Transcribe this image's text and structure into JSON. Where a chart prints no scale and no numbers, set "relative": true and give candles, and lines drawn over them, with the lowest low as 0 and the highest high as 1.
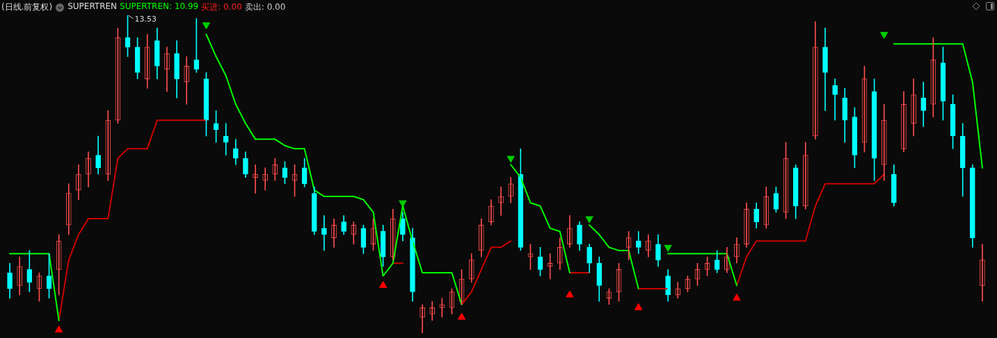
{
  "chart_data": {
    "type": "candlestick",
    "title": "(日线.前复权)",
    "relative": true,
    "tick_labels": false,
    "annotations": [
      "SUPERTREN",
      "SUPERTREN: 10.99",
      "买进: 0.00",
      "卖出: 0.00",
      "13.53"
    ],
    "categories": [
      null,
      null,
      null,
      null,
      null,
      null,
      null,
      null,
      null,
      null,
      null,
      null,
      null,
      null,
      null,
      null,
      null,
      null,
      null,
      null,
      null,
      null,
      null,
      null,
      null,
      null,
      null,
      null,
      null,
      null,
      null,
      null,
      null,
      null,
      null,
      null,
      null,
      null,
      null,
      null,
      null,
      null,
      null,
      null,
      null,
      null,
      null,
      null,
      null,
      null,
      null,
      null,
      null,
      null,
      null,
      null,
      null,
      null,
      null,
      null,
      null,
      null,
      null,
      null,
      null,
      null,
      null,
      null,
      null,
      null,
      null,
      null,
      null,
      null,
      null,
      null,
      null,
      null,
      null,
      null,
      null,
      null,
      null,
      null,
      null,
      null,
      null,
      null,
      null,
      null,
      null,
      null,
      null,
      null,
      null,
      null,
      null,
      null,
      null,
      null
    ],
    "series": [
      {
        "ohlc": [
          [
            0.19,
            0.22,
            0.11,
            0.14
          ],
          [
            0.15,
            0.24,
            0.12,
            0.21
          ],
          [
            0.2,
            0.26,
            0.13,
            0.16
          ],
          [
            0.14,
            0.19,
            0.1,
            0.18
          ],
          [
            0.18,
            0.25,
            0.11,
            0.14
          ],
          [
            0.2,
            0.31,
            0.12,
            0.29
          ],
          [
            0.34,
            0.47,
            0.31,
            0.44
          ],
          [
            0.45,
            0.53,
            0.42,
            0.5
          ],
          [
            0.5,
            0.57,
            0.46,
            0.55
          ],
          [
            0.56,
            0.62,
            0.5,
            0.52
          ],
          [
            0.5,
            0.7,
            0.48,
            0.67
          ],
          [
            0.67,
            0.96,
            0.66,
            0.93
          ],
          [
            0.93,
            1,
            0.87,
            0.9
          ],
          [
            0.9,
            0.93,
            0.8,
            0.82
          ],
          [
            0.8,
            0.94,
            0.77,
            0.9
          ],
          [
            0.92,
            0.96,
            0.8,
            0.84
          ],
          [
            0.83,
            0.9,
            0.76,
            0.88
          ],
          [
            0.88,
            0.92,
            0.74,
            0.8
          ],
          [
            0.79,
            0.87,
            0.72,
            0.84
          ],
          [
            0.86,
            0.99,
            0.82,
            0.83
          ],
          [
            0.8,
            0.82,
            0.62,
            0.67
          ],
          [
            0.66,
            0.7,
            0.6,
            0.64
          ],
          [
            0.62,
            0.66,
            0.56,
            0.6
          ],
          [
            0.58,
            0.61,
            0.53,
            0.55
          ],
          [
            0.55,
            0.57,
            0.49,
            0.5
          ],
          [
            0.49,
            0.53,
            0.44,
            0.5
          ],
          [
            0.48,
            0.52,
            0.45,
            0.5
          ],
          [
            0.5,
            0.55,
            0.48,
            0.53
          ],
          [
            0.52,
            0.54,
            0.47,
            0.49
          ],
          [
            0.48,
            0.53,
            0.43,
            0.5
          ],
          [
            0.52,
            0.55,
            0.46,
            0.47
          ],
          [
            0.44,
            0.46,
            0.31,
            0.32
          ],
          [
            0.33,
            0.37,
            0.26,
            0.31
          ],
          [
            0.3,
            0.36,
            0.27,
            0.34
          ],
          [
            0.35,
            0.37,
            0.31,
            0.32
          ],
          [
            0.31,
            0.35,
            0.28,
            0.34
          ],
          [
            0.33,
            0.34,
            0.25,
            0.27
          ],
          [
            0.28,
            0.36,
            0.26,
            0.33
          ],
          [
            0.32,
            0.34,
            0.21,
            0.24
          ],
          [
            0.24,
            0.39,
            0.23,
            0.36
          ],
          [
            0.36,
            0.38,
            0.29,
            0.31
          ],
          [
            0.3,
            0.33,
            0.1,
            0.13
          ],
          [
            0.05,
            0.09,
            0,
            0.08
          ],
          [
            0.06,
            0.1,
            0.04,
            0.08
          ],
          [
            0.08,
            0.11,
            0.05,
            0.09
          ],
          [
            0.08,
            0.14,
            0.06,
            0.13
          ],
          [
            0.1,
            0.2,
            0.09,
            0.17
          ],
          [
            0.17,
            0.25,
            0.16,
            0.23
          ],
          [
            0.26,
            0.36,
            0.24,
            0.34
          ],
          [
            0.35,
            0.42,
            0.34,
            0.4
          ],
          [
            0.41,
            0.46,
            0.37,
            0.43
          ],
          [
            0.43,
            0.49,
            0.41,
            0.47
          ],
          [
            0.5,
            0.58,
            0.26,
            0.27
          ],
          [
            0.24,
            0.28,
            0.2,
            0.25
          ],
          [
            0.24,
            0.27,
            0.18,
            0.2
          ],
          [
            0.21,
            0.25,
            0.17,
            0.22
          ],
          [
            0.22,
            0.3,
            0.2,
            0.27
          ],
          [
            0.28,
            0.37,
            0.27,
            0.33
          ],
          [
            0.34,
            0.35,
            0.26,
            0.28
          ],
          [
            0.27,
            0.28,
            0.19,
            0.22
          ],
          [
            0.22,
            0.24,
            0.1,
            0.15
          ],
          [
            0.11,
            0.14,
            0.09,
            0.13
          ],
          [
            0.13,
            0.22,
            0.1,
            0.2
          ],
          [
            0.27,
            0.32,
            0.23,
            0.3
          ],
          [
            0.29,
            0.32,
            0.25,
            0.27
          ],
          [
            0.26,
            0.31,
            0.24,
            0.29
          ],
          [
            0.28,
            0.31,
            0.21,
            0.23
          ],
          [
            0.18,
            0.2,
            0.1,
            0.12
          ],
          [
            0.12,
            0.16,
            0.11,
            0.14
          ],
          [
            0.14,
            0.18,
            0.13,
            0.17
          ],
          [
            0.17,
            0.22,
            0.15,
            0.2
          ],
          [
            0.2,
            0.24,
            0.18,
            0.22
          ],
          [
            0.23,
            0.26,
            0.19,
            0.2
          ],
          [
            0.2,
            0.27,
            0.19,
            0.24
          ],
          [
            0.24,
            0.3,
            0.22,
            0.28
          ],
          [
            0.28,
            0.41,
            0.27,
            0.39
          ],
          [
            0.39,
            0.41,
            0.33,
            0.35
          ],
          [
            0.34,
            0.46,
            0.33,
            0.43
          ],
          [
            0.44,
            0.46,
            0.38,
            0.39
          ],
          [
            0.38,
            0.6,
            0.36,
            0.55
          ],
          [
            0.52,
            0.53,
            0.36,
            0.4
          ],
          [
            0.4,
            0.6,
            0.39,
            0.56
          ],
          [
            0.62,
            0.98,
            0.61,
            0.9
          ],
          [
            0.9,
            0.96,
            0.7,
            0.82
          ],
          [
            0.78,
            0.8,
            0.67,
            0.75
          ],
          [
            0.74,
            0.77,
            0.6,
            0.67
          ],
          [
            0.68,
            0.71,
            0.52,
            0.56
          ],
          [
            0.6,
            0.84,
            0.57,
            0.8
          ],
          [
            0.76,
            0.8,
            0.48,
            0.55
          ],
          [
            0.53,
            0.72,
            0.48,
            0.67
          ],
          [
            0.5,
            0.53,
            0.4,
            0.41
          ],
          [
            0.58,
            0.76,
            0.57,
            0.72
          ],
          [
            0.66,
            0.8,
            0.62,
            0.75
          ],
          [
            0.74,
            0.79,
            0.65,
            0.7
          ],
          [
            0.72,
            0.93,
            0.68,
            0.86
          ],
          [
            0.85,
            0.9,
            0.67,
            0.73
          ],
          [
            0.72,
            0.75,
            0.58,
            0.62
          ],
          [
            0.62,
            0.66,
            0.43,
            0.52
          ],
          [
            0.52,
            0.53,
            0.27,
            0.3
          ],
          [
            0.15,
            0.28,
            0.1,
            0.23
          ]
        ],
        "colors": [
          "#00ffff",
          "#ff4d4d",
          "#00ffff",
          "#ff4d4d",
          "#00ffff",
          "#ff4d4d",
          "#ff4d4d",
          "#ff4d4d",
          "#ff4d4d",
          "#00ffff",
          "#ff4d4d",
          "#ff4d4d",
          "#00ffff",
          "#00ffff",
          "#ff4d4d",
          "#00ffff",
          "#ff4d4d",
          "#00ffff",
          "#ff4d4d",
          "#00ffff",
          "#00ffff",
          "#00ffff",
          "#00ffff",
          "#00ffff",
          "#00ffff",
          "#ff4d4d",
          "#ff4d4d",
          "#ff4d4d",
          "#00ffff",
          "#ff4d4d",
          "#00ffff",
          "#00ffff",
          "#00ffff",
          "#ff4d4d",
          "#00ffff",
          "#ff4d4d",
          "#00ffff",
          "#ff4d4d",
          "#00ffff",
          "#ff4d4d",
          "#00ffff",
          "#00ffff",
          "#ff4d4d",
          "#ff4d4d",
          "#ff4d4d",
          "#ff4d4d",
          "#ff4d4d",
          "#ff4d4d",
          "#ff4d4d",
          "#ff4d4d",
          "#ff4d4d",
          "#ff4d4d",
          "#00ffff",
          "#ff4d4d",
          "#00ffff",
          "#ff4d4d",
          "#ff4d4d",
          "#ff4d4d",
          "#00ffff",
          "#00ffff",
          "#00ffff",
          "#ff4d4d",
          "#ff4d4d",
          "#ff4d4d",
          "#00ffff",
          "#ff4d4d",
          "#00ffff",
          "#00ffff",
          "#ff4d4d",
          "#ff4d4d",
          "#ff4d4d",
          "#ff4d4d",
          "#00ffff",
          "#ff4d4d",
          "#ff4d4d",
          "#ff4d4d",
          "#00ffff",
          "#ff4d4d",
          "#00ffff",
          "#ff4d4d",
          "#00ffff",
          "#ff4d4d",
          "#ff4d4d",
          "#00ffff",
          "#00ffff",
          "#00ffff",
          "#00ffff",
          "#ff4d4d",
          "#00ffff",
          "#ff4d4d",
          "#00ffff",
          "#ff4d4d",
          "#ff4d4d",
          "#00ffff",
          "#ff4d4d",
          "#00ffff",
          "#00ffff",
          "#00ffff",
          "#00ffff",
          "#ff4d4d"
        ]
      },
      {
        "type": "line",
        "color": "#00ff00",
        "values": [
          0.25,
          0.25,
          0.25,
          0.25,
          0.25,
          0.04,
          null,
          null,
          null,
          null,
          null,
          null,
          null,
          null,
          null,
          null,
          null,
          null,
          null,
          null,
          0.94,
          0.87,
          0.81,
          0.72,
          0.66,
          0.61,
          0.61,
          0.61,
          0.59,
          0.58,
          0.58,
          0.45,
          0.43,
          0.43,
          0.43,
          0.43,
          0.42,
          0.38,
          0.18,
          0.22,
          0.4,
          0.29,
          0.19,
          0.19,
          0.19,
          0.19,
          0.09,
          null,
          null,
          null,
          null,
          0.53,
          0.49,
          0.41,
          0.4,
          0.33,
          0.32,
          0.19,
          null,
          0.34,
          0.31,
          0.27,
          0.26,
          0.26,
          0.14,
          null,
          null,
          0.25,
          0.25,
          0.25,
          0.25,
          0.25,
          0.25,
          0.25,
          0.15,
          null,
          null,
          null,
          null,
          null,
          null,
          null,
          null,
          null,
          null,
          null,
          null,
          null,
          null,
          null,
          0.91,
          0.91,
          0.91,
          0.91,
          0.91,
          0.91,
          0.91,
          0.91,
          0.79,
          0.52
        ]
      },
      {
        "type": "line",
        "color": "#cc0000",
        "values": [
          null,
          null,
          null,
          null,
          null,
          0.04,
          0.23,
          0.31,
          0.36,
          0.36,
          0.36,
          0.55,
          0.58,
          0.58,
          0.58,
          0.67,
          0.67,
          0.67,
          0.67,
          0.67,
          0.67,
          null,
          null,
          null,
          null,
          null,
          null,
          null,
          null,
          null,
          null,
          null,
          null,
          null,
          null,
          null,
          null,
          null,
          null,
          0.22,
          0.22,
          null,
          null,
          null,
          null,
          null,
          0.09,
          0.13,
          0.2,
          0.27,
          0.27,
          0.29,
          null,
          null,
          null,
          null,
          null,
          0.19,
          0.19,
          0.19,
          null,
          null,
          null,
          null,
          0.14,
          0.14,
          0.14,
          0.14,
          null,
          null,
          null,
          null,
          null,
          null,
          0.15,
          0.24,
          0.29,
          0.29,
          0.29,
          0.29,
          0.29,
          0.29,
          0.4,
          0.47,
          0.47,
          0.47,
          0.47,
          0.47,
          0.47,
          0.5,
          null,
          null,
          null,
          null,
          null,
          null,
          null,
          null,
          null,
          null
        ]
      },
      {
        "type": "scatter",
        "color": "#ff0000",
        "marker": "triangle",
        "values": [
          null,
          null,
          null,
          null,
          null,
          0.01,
          null,
          null,
          null,
          null,
          null,
          null,
          null,
          null,
          null,
          null,
          null,
          null,
          null,
          null,
          null,
          null,
          null,
          null,
          null,
          null,
          null,
          null,
          null,
          null,
          null,
          null,
          null,
          null,
          null,
          null,
          null,
          null,
          0.15,
          null,
          null,
          null,
          null,
          null,
          null,
          null,
          0.05,
          null,
          null,
          null,
          null,
          null,
          null,
          null,
          null,
          null,
          null,
          0.12,
          null,
          null,
          null,
          null,
          null,
          null,
          0.08,
          null,
          null,
          null,
          null,
          null,
          null,
          null,
          null,
          null,
          0.11,
          null,
          null,
          null,
          null,
          null,
          null,
          null,
          null,
          null,
          null,
          null,
          null,
          null,
          null,
          null,
          null,
          null,
          null,
          null,
          null,
          null,
          null,
          null,
          null,
          null
        ]
      },
      {
        "type": "scatter",
        "color": "#00cc00",
        "marker": "triangle",
        "values": [
          null,
          null,
          null,
          null,
          null,
          null,
          null,
          null,
          null,
          null,
          null,
          null,
          null,
          null,
          null,
          null,
          null,
          null,
          null,
          null,
          0.97,
          null,
          null,
          null,
          null,
          null,
          null,
          null,
          null,
          null,
          null,
          null,
          null,
          null,
          null,
          null,
          null,
          null,
          null,
          null,
          0.41,
          null,
          null,
          null,
          null,
          null,
          null,
          null,
          null,
          null,
          null,
          0.55,
          null,
          null,
          null,
          null,
          null,
          null,
          null,
          0.36,
          null,
          null,
          null,
          null,
          null,
          null,
          null,
          0.27,
          null,
          null,
          null,
          null,
          null,
          null,
          null,
          null,
          null,
          null,
          null,
          null,
          null,
          null,
          null,
          null,
          null,
          null,
          null,
          null,
          null,
          0.94,
          null,
          null,
          null,
          null,
          null,
          null,
          null,
          null,
          null,
          null
        ]
      }
    ]
  }
}
